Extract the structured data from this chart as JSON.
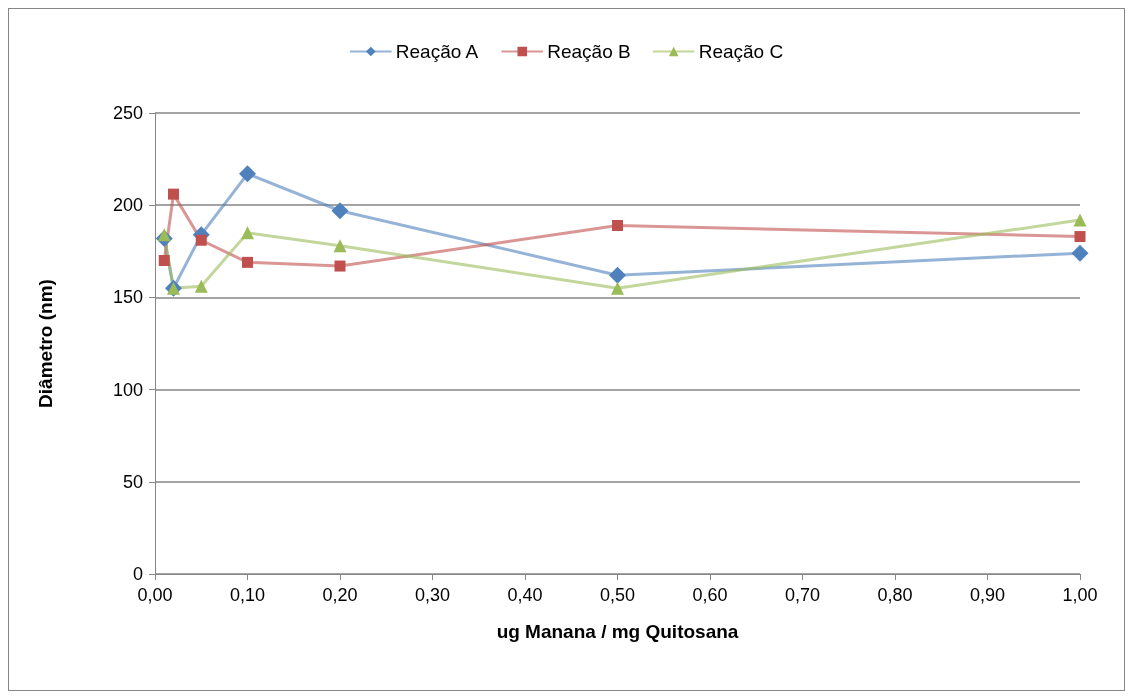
{
  "chart_data": {
    "type": "line",
    "xlabel": "ug Manana / mg Quitosana",
    "ylabel": "Diâmetro (nm)",
    "x": [
      0.01,
      0.02,
      0.05,
      0.1,
      0.2,
      0.5,
      1.0
    ],
    "series": [
      {
        "name": "Reação A",
        "color": "#4f81bd",
        "marker": "diamond",
        "values": [
          182,
          155,
          184,
          217,
          197,
          162,
          174
        ]
      },
      {
        "name": "Reação B",
        "color": "#c0504d",
        "marker": "square",
        "values": [
          170,
          206,
          181,
          169,
          167,
          189,
          183
        ]
      },
      {
        "name": "Reação C",
        "color": "#9bbb59",
        "marker": "triangle",
        "values": [
          184,
          155,
          156,
          185,
          178,
          155,
          192
        ]
      }
    ],
    "xlim": [
      0,
      1
    ],
    "xticks": [
      {
        "value": 0,
        "label": "0,00"
      },
      {
        "value": 0.1,
        "label": "0,10"
      },
      {
        "value": 0.2,
        "label": "0,20"
      },
      {
        "value": 0.3,
        "label": "0,30"
      },
      {
        "value": 0.4,
        "label": "0,40"
      },
      {
        "value": 0.5,
        "label": "0,50"
      },
      {
        "value": 0.6,
        "label": "0,60"
      },
      {
        "value": 0.7,
        "label": "0,70"
      },
      {
        "value": 0.8,
        "label": "0,80"
      },
      {
        "value": 0.9,
        "label": "0,90"
      },
      {
        "value": 1,
        "label": "1,00"
      }
    ],
    "ylim": [
      0,
      250
    ],
    "yticks": [
      0,
      50,
      100,
      150,
      200,
      250
    ],
    "grid": "y",
    "legend": "top"
  }
}
